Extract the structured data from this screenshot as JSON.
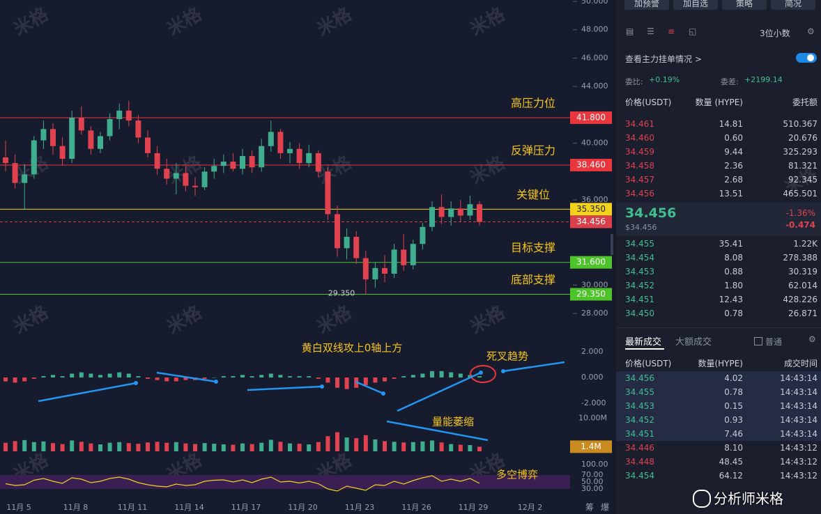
{
  "chart_data": {
    "type": "candlestick",
    "xlabels": [
      "11月 5",
      "11月 8",
      "11月 11",
      "11月 14",
      "11月 17",
      "11月 20",
      "11月 23",
      "11月 26",
      "11月 29",
      "12月 2"
    ],
    "open": [
      39.0,
      38.6,
      37.2,
      37.8,
      40.2,
      41.0,
      39.8,
      38.9,
      41.8,
      40.9,
      39.6,
      40.5,
      41.7,
      42.3,
      41.6,
      40.4,
      39.3,
      38.2,
      37.5,
      37.9,
      37.0,
      36.9,
      38.0,
      38.4,
      38.7,
      38.2,
      39.1,
      38.3,
      39.8,
      40.8,
      39.3,
      39.6,
      38.6,
      39.3,
      38.0,
      35.0,
      32.6,
      33.4,
      31.9,
      30.4,
      31.2,
      30.8,
      32.5,
      31.4,
      32.9,
      34.1,
      35.5,
      34.8,
      35.4,
      34.9,
      35.7
    ],
    "high": [
      40.2,
      39.2,
      38.5,
      40.5,
      41.6,
      41.4,
      40.4,
      42.3,
      42.6,
      41.2,
      40.8,
      42.1,
      42.8,
      43.0,
      42.0,
      40.9,
      39.8,
      38.9,
      38.6,
      38.4,
      37.6,
      38.3,
      38.9,
      39.2,
      39.3,
      39.6,
      39.5,
      40.3,
      41.6,
      41.0,
      40.1,
      40.0,
      39.9,
      39.5,
      38.3,
      35.6,
      34.0,
      33.8,
      32.4,
      31.6,
      32.1,
      32.9,
      33.6,
      33.2,
      34.4,
      35.9,
      36.4,
      35.9,
      36.0,
      36.3,
      35.9
    ],
    "low": [
      38.0,
      36.8,
      35.3,
      37.5,
      39.6,
      39.2,
      38.4,
      38.6,
      40.6,
      39.2,
      39.3,
      40.2,
      41.0,
      41.2,
      40.0,
      39.0,
      37.8,
      37.1,
      36.4,
      36.6,
      36.3,
      36.7,
      37.5,
      37.9,
      38.0,
      37.8,
      37.9,
      38.0,
      39.4,
      38.9,
      38.6,
      38.2,
      38.3,
      37.6,
      34.6,
      32.0,
      31.8,
      31.5,
      29.35,
      29.8,
      30.2,
      30.5,
      31.0,
      31.1,
      32.5,
      33.8,
      34.3,
      34.2,
      34.5,
      34.6,
      34.2
    ],
    "close": [
      38.6,
      37.2,
      37.8,
      40.2,
      41.0,
      39.8,
      38.9,
      41.8,
      40.9,
      39.6,
      40.5,
      41.7,
      42.3,
      41.6,
      40.4,
      39.3,
      38.2,
      37.5,
      37.9,
      37.0,
      36.9,
      38.0,
      38.4,
      38.7,
      38.2,
      39.1,
      38.3,
      39.8,
      40.8,
      39.3,
      39.6,
      38.6,
      39.3,
      38.0,
      35.0,
      32.6,
      33.4,
      31.9,
      30.4,
      31.2,
      30.8,
      32.5,
      31.4,
      32.9,
      34.1,
      35.5,
      34.8,
      35.4,
      34.9,
      35.7,
      34.456
    ],
    "up_color": "#3fae8e",
    "down_color": "#e0424f",
    "ylim": [
      28,
      50
    ],
    "yticks": [
      {
        "value": 50,
        "label": "50.000"
      },
      {
        "value": 48,
        "label": "48.000"
      },
      {
        "value": 46,
        "label": "46.000"
      },
      {
        "value": 44,
        "label": "44.000"
      },
      {
        "value": 40,
        "label": "40.000"
      },
      {
        "value": 36,
        "label": "36.000"
      },
      {
        "value": 30,
        "label": "30.000"
      },
      {
        "value": 28,
        "label": "28.000"
      }
    ],
    "levels": [
      {
        "value": 41.8,
        "label": "41.800",
        "color": "#e8363c",
        "note": "高压力位"
      },
      {
        "value": 38.46,
        "label": "38.460",
        "color": "#e8363c",
        "note": "反弹压力"
      },
      {
        "value": 35.35,
        "label": "35.350",
        "color": "#f2d21b",
        "note": "关键位"
      },
      {
        "value": 31.6,
        "label": "31.600",
        "color": "#4cc42a",
        "note": "目标支撑"
      },
      {
        "value": 29.35,
        "label": "29.350",
        "color": "#4cc42a",
        "note": "底部支撑"
      }
    ],
    "current": {
      "value": 34.456,
      "label": "34.456",
      "color": "#d9404a"
    },
    "low_marker": {
      "value": 29.35,
      "label": "29.350"
    },
    "macd": {
      "values": [
        -0.3,
        -0.4,
        -0.3,
        -0.1,
        0.1,
        0.2,
        0.1,
        0.3,
        0.4,
        0.3,
        0.2,
        0.3,
        0.4,
        0.3,
        0.1,
        -0.1,
        -0.2,
        -0.3,
        -0.3,
        -0.2,
        -0.2,
        -0.1,
        0,
        0.1,
        0.1,
        0.2,
        0.1,
        0.2,
        0.3,
        0.2,
        0.1,
        0.1,
        0.1,
        -0.1,
        -0.4,
        -0.8,
        -0.9,
        -0.8,
        -0.6,
        -0.4,
        -0.3,
        -0.1,
        0.1,
        0.2,
        0.3,
        0.5,
        0.5,
        0.4,
        0.3,
        0.2,
        0.1
      ],
      "ylim": [
        -2.6,
        2.6
      ],
      "yticks": [
        {
          "value": 2,
          "label": "2.000"
        },
        {
          "value": 0,
          "label": "0.000"
        },
        {
          "value": -2,
          "label": "-2.000"
        }
      ],
      "annotations": [
        "黄白双线攻上0轴上方",
        "死叉趋势"
      ]
    },
    "volume": {
      "values": [
        2600000,
        3100000,
        3400000,
        2800000,
        3000000,
        2500000,
        2200000,
        3300000,
        2900000,
        2400000,
        2100000,
        2600000,
        2800000,
        2500000,
        2300000,
        2700000,
        2900000,
        2600000,
        2800000,
        2400000,
        2200000,
        2500000,
        2300000,
        2100000,
        2000000,
        2400000,
        2200000,
        2600000,
        3500000,
        2900000,
        2400000,
        2300000,
        2100000,
        2800000,
        4600000,
        5800000,
        4200000,
        4000000,
        4900000,
        3600000,
        3100000,
        2900000,
        2700000,
        2800000,
        3000000,
        3300000,
        2700000,
        2200000,
        2000000,
        1900000,
        1400000
      ],
      "ylim": [
        0,
        11000000
      ],
      "yticks": [
        {
          "value": 10000000,
          "label": "10.00M"
        }
      ],
      "last": {
        "value": 1400000,
        "label": "1.4M"
      },
      "annotation": "量能萎缩"
    },
    "rsi": {
      "values": [
        45,
        40,
        42,
        55,
        60,
        52,
        46,
        62,
        58,
        48,
        52,
        60,
        64,
        58,
        48,
        42,
        38,
        36,
        44,
        40,
        42,
        52,
        55,
        56,
        50,
        56,
        48,
        58,
        64,
        50,
        52,
        47,
        52,
        45,
        30,
        24,
        38,
        32,
        26,
        42,
        40,
        52,
        44,
        54,
        62,
        68,
        52,
        58,
        52,
        60,
        46
      ],
      "ylim": [
        0,
        100
      ],
      "yticks": [
        {
          "value": 100,
          "label": "100.00"
        },
        {
          "value": 70,
          "label": "70.00"
        },
        {
          "value": 50,
          "label": "50.00"
        },
        {
          "value": 30,
          "label": "30.00"
        }
      ],
      "annotation": "多空博弈"
    },
    "watermark": "米格",
    "corner_labels": [
      "筹",
      "爆"
    ]
  },
  "sidebar": {
    "buttons": [
      "加预警",
      "加自选",
      "策略",
      "简况"
    ],
    "decimals": "3位小数",
    "depth_toggle": "查看主力挂单情况 >",
    "ratio": {
      "label": "委比:",
      "value": "+0.19%"
    },
    "diff": {
      "label": "委差:",
      "value": "+2199.14"
    },
    "book_headers": [
      "价格(USDT)",
      "数量 (HYPE)",
      "委托额"
    ],
    "asks": [
      [
        "34.461",
        "14.81",
        "510.367"
      ],
      [
        "34.460",
        "0.60",
        "20.676"
      ],
      [
        "34.459",
        "9.44",
        "325.293"
      ],
      [
        "34.458",
        "2.36",
        "81.321"
      ],
      [
        "34.457",
        "2.68",
        "92.345"
      ],
      [
        "34.456",
        "13.51",
        "465.501"
      ]
    ],
    "mid": {
      "price": "34.456",
      "usd": "$34.456",
      "pct": "-1.36%",
      "change": "-0.474"
    },
    "bids": [
      [
        "34.455",
        "35.41",
        "1.22K"
      ],
      [
        "34.454",
        "8.08",
        "278.388"
      ],
      [
        "34.453",
        "0.88",
        "30.319"
      ],
      [
        "34.452",
        "1.80",
        "62.014"
      ],
      [
        "34.451",
        "12.43",
        "428.226"
      ],
      [
        "34.450",
        "0.78",
        "26.871"
      ]
    ],
    "trade_tabs": [
      "最新成交",
      "大额成交"
    ],
    "filter": "普通",
    "trade_headers": [
      "价格(USDT)",
      "数量(HYPE)",
      "成交时间"
    ],
    "trades": [
      {
        "price": "34.456",
        "qty": "4.02",
        "time": "14:43:14",
        "color": "#3fbf8f"
      },
      {
        "price": "34.455",
        "qty": "0.78",
        "time": "14:43:14",
        "color": "#3fbf8f"
      },
      {
        "price": "34.453",
        "qty": "0.15",
        "time": "14:43:14",
        "color": "#3fbf8f"
      },
      {
        "price": "34.452",
        "qty": "0.93",
        "time": "14:43:14",
        "color": "#3fbf8f"
      },
      {
        "price": "34.451",
        "qty": "7.46",
        "time": "14:43:14",
        "color": "#3fbf8f"
      },
      {
        "price": "34.446",
        "qty": "8.10",
        "time": "14:43:12",
        "color": "#e0424f"
      },
      {
        "price": "34.448",
        "qty": "48.45",
        "time": "14:43:12",
        "color": "#e0424f"
      },
      {
        "price": "34.454",
        "qty": "64.12",
        "time": "14:43:12",
        "color": "#3fbf8f"
      }
    ],
    "footer": "分析师米格"
  }
}
